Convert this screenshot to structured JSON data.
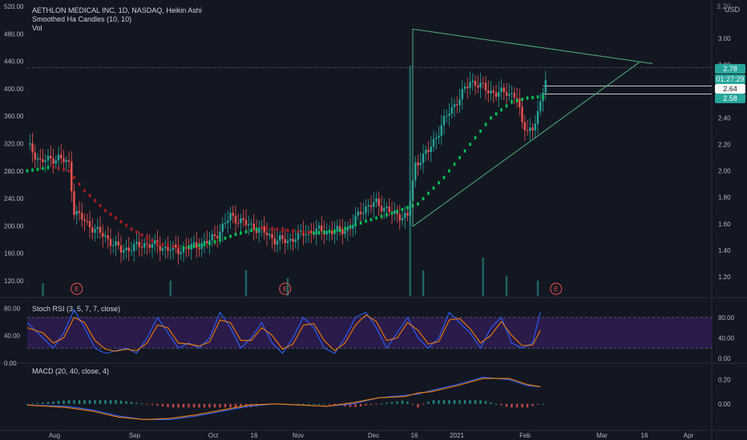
{
  "header": {
    "title": "AETHLON MEDICAL INC, 1D, NASDAQ, Heikin Ashi",
    "indicator1": "Smoothed Ha Candles (10, 10)",
    "indicator2": "Vol",
    "currency": "USD"
  },
  "price_tags": {
    "last": "2.78",
    "countdown": "01:27:29",
    "mark1": "2.64",
    "mark2": "2.58",
    "top_tick": "3.20"
  },
  "colors": {
    "background": "#131722",
    "up": "#26a69a",
    "down": "#ef5350",
    "ha_up": "#00c853",
    "ha_down": "#b71c1c",
    "trendline": "#4caf7d",
    "stoch_k": "#2962ff",
    "stoch_d": "#f57c00",
    "macd": "#2962ff",
    "signal": "#f57c00",
    "band": "#2a1b4a"
  },
  "chart_data": [
    {
      "type": "candlestick",
      "title": "AETHLON MEDICAL INC, 1D, NASDAQ, Heikin Ashi",
      "x_ticks": [
        "Aug",
        "Sep",
        "Oct",
        "16",
        "Nov",
        "Dec",
        "16",
        "2021",
        "Feb",
        "Mar",
        "16",
        "Apr"
      ],
      "y_ticks_left": [
        "520.00",
        "480.00",
        "440.00",
        "400.00",
        "360.00",
        "320.00",
        "280.00",
        "240.00",
        "200.00",
        "160.00",
        "120.00",
        "80.00",
        "40.00",
        "0.00"
      ],
      "y_ticks_right": [
        "3.00",
        "2.80",
        "2.60",
        "2.40",
        "2.20",
        "2.00",
        "1.80",
        "1.60",
        "1.40",
        "1.20"
      ],
      "ylim": [
        1.07,
        3.2
      ],
      "earnings_markers": [
        "E",
        "E",
        "E"
      ],
      "price_path": [
        [
          0,
          2.2
        ],
        [
          5,
          2.07
        ],
        [
          12,
          2.1
        ],
        [
          16,
          2.05
        ],
        [
          18,
          1.7
        ],
        [
          23,
          1.6
        ],
        [
          30,
          1.5
        ],
        [
          36,
          1.4
        ],
        [
          40,
          1.42
        ],
        [
          46,
          1.45
        ],
        [
          52,
          1.42
        ],
        [
          58,
          1.4
        ],
        [
          64,
          1.43
        ],
        [
          70,
          1.47
        ],
        [
          74,
          1.55
        ],
        [
          78,
          1.66
        ],
        [
          84,
          1.6
        ],
        [
          90,
          1.55
        ],
        [
          95,
          1.48
        ],
        [
          100,
          1.47
        ],
        [
          106,
          1.53
        ],
        [
          112,
          1.55
        ],
        [
          118,
          1.54
        ],
        [
          124,
          1.57
        ],
        [
          128,
          1.7
        ],
        [
          134,
          1.76
        ],
        [
          140,
          1.68
        ],
        [
          146,
          1.65
        ],
        [
          149,
          2.05
        ],
        [
          154,
          2.15
        ],
        [
          158,
          2.3
        ],
        [
          162,
          2.45
        ],
        [
          166,
          2.55
        ],
        [
          170,
          2.68
        ],
        [
          176,
          2.62
        ],
        [
          180,
          2.58
        ],
        [
          184,
          2.6
        ],
        [
          188,
          2.55
        ],
        [
          190,
          2.35
        ],
        [
          194,
          2.3
        ],
        [
          197,
          2.5
        ],
        [
          199,
          2.72
        ]
      ],
      "ha_smoothed": [
        [
          0,
          2.0
        ],
        [
          10,
          2.03
        ],
        [
          16,
          2.0
        ],
        [
          22,
          1.85
        ],
        [
          30,
          1.7
        ],
        [
          40,
          1.56
        ],
        [
          50,
          1.45
        ],
        [
          60,
          1.42
        ],
        [
          70,
          1.45
        ],
        [
          80,
          1.52
        ],
        [
          90,
          1.57
        ],
        [
          100,
          1.55
        ],
        [
          110,
          1.53
        ],
        [
          120,
          1.55
        ],
        [
          130,
          1.62
        ],
        [
          140,
          1.68
        ],
        [
          150,
          1.75
        ],
        [
          160,
          1.95
        ],
        [
          170,
          2.2
        ],
        [
          178,
          2.4
        ],
        [
          186,
          2.52
        ],
        [
          192,
          2.55
        ],
        [
          197,
          2.56
        ]
      ],
      "volume": [
        [
          6,
          0.05
        ],
        [
          55,
          0.06
        ],
        [
          84,
          0.1
        ],
        [
          100,
          0.07
        ],
        [
          147,
          0.9
        ],
        [
          152,
          0.1
        ],
        [
          175,
          0.15
        ],
        [
          184,
          0.08
        ],
        [
          196,
          0.06
        ]
      ],
      "trendline_upper": [
        [
          148,
          3.07
        ],
        [
          240,
          2.81
        ]
      ],
      "trendline_lower": [
        [
          148,
          1.58
        ],
        [
          235,
          2.82
        ]
      ],
      "channel_lines": [
        2.64,
        2.58
      ],
      "dotted_level": 2.78
    },
    {
      "type": "line",
      "title": "Stoch RSI (3, 5, 7, 7, close)",
      "y_ticks": [
        "80.00",
        "40.00",
        "0.00"
      ],
      "ylim": [
        0,
        100
      ],
      "band": [
        20,
        80
      ],
      "series": [
        {
          "name": "K",
          "values": [
            [
              0,
              70
            ],
            [
              6,
              40
            ],
            [
              10,
              20
            ],
            [
              14,
              50
            ],
            [
              18,
              95
            ],
            [
              22,
              60
            ],
            [
              26,
              20
            ],
            [
              30,
              10
            ],
            [
              34,
              15
            ],
            [
              38,
              20
            ],
            [
              42,
              10
            ],
            [
              46,
              40
            ],
            [
              50,
              80
            ],
            [
              54,
              50
            ],
            [
              58,
              20
            ],
            [
              62,
              30
            ],
            [
              66,
              20
            ],
            [
              70,
              40
            ],
            [
              74,
              90
            ],
            [
              78,
              60
            ],
            [
              82,
              20
            ],
            [
              86,
              40
            ],
            [
              90,
              70
            ],
            [
              94,
              30
            ],
            [
              98,
              10
            ],
            [
              102,
              40
            ],
            [
              106,
              80
            ],
            [
              110,
              60
            ],
            [
              114,
              20
            ],
            [
              118,
              10
            ],
            [
              122,
              40
            ],
            [
              126,
              80
            ],
            [
              130,
              90
            ],
            [
              134,
              60
            ],
            [
              138,
              20
            ],
            [
              142,
              50
            ],
            [
              146,
              80
            ],
            [
              150,
              40
            ],
            [
              154,
              20
            ],
            [
              158,
              40
            ],
            [
              162,
              90
            ],
            [
              166,
              70
            ],
            [
              170,
              50
            ],
            [
              174,
              20
            ],
            [
              178,
              60
            ],
            [
              182,
              80
            ],
            [
              186,
              30
            ],
            [
              190,
              20
            ],
            [
              194,
              30
            ],
            [
              197,
              90
            ]
          ]
        },
        {
          "name": "D",
          "values": [
            [
              0,
              60
            ],
            [
              6,
              50
            ],
            [
              10,
              30
            ],
            [
              14,
              40
            ],
            [
              18,
              80
            ],
            [
              22,
              70
            ],
            [
              26,
              35
            ],
            [
              30,
              18
            ],
            [
              34,
              14
            ],
            [
              38,
              18
            ],
            [
              42,
              15
            ],
            [
              46,
              30
            ],
            [
              50,
              65
            ],
            [
              54,
              60
            ],
            [
              58,
              30
            ],
            [
              62,
              28
            ],
            [
              66,
              24
            ],
            [
              70,
              32
            ],
            [
              74,
              75
            ],
            [
              78,
              70
            ],
            [
              82,
              35
            ],
            [
              86,
              35
            ],
            [
              90,
              60
            ],
            [
              94,
              45
            ],
            [
              98,
              18
            ],
            [
              102,
              28
            ],
            [
              106,
              65
            ],
            [
              110,
              68
            ],
            [
              114,
              35
            ],
            [
              118,
              15
            ],
            [
              122,
              30
            ],
            [
              126,
              65
            ],
            [
              130,
              85
            ],
            [
              134,
              72
            ],
            [
              138,
              35
            ],
            [
              142,
              40
            ],
            [
              146,
              70
            ],
            [
              150,
              55
            ],
            [
              154,
              28
            ],
            [
              158,
              33
            ],
            [
              162,
              75
            ],
            [
              166,
              78
            ],
            [
              170,
              58
            ],
            [
              174,
              30
            ],
            [
              178,
              45
            ],
            [
              182,
              72
            ],
            [
              186,
              45
            ],
            [
              190,
              25
            ],
            [
              194,
              26
            ],
            [
              197,
              55
            ]
          ]
        }
      ]
    },
    {
      "type": "line",
      "title": "MACD (20, 40, close, 4)",
      "y_ticks": [
        "0.20",
        "0.00"
      ],
      "ylim": [
        -0.18,
        0.27
      ],
      "series": [
        {
          "name": "MACD",
          "values": [
            [
              0,
              -0.01
            ],
            [
              15,
              -0.02
            ],
            [
              25,
              -0.05
            ],
            [
              35,
              -0.1
            ],
            [
              45,
              -0.13
            ],
            [
              55,
              -0.13
            ],
            [
              65,
              -0.1
            ],
            [
              75,
              -0.06
            ],
            [
              85,
              -0.02
            ],
            [
              95,
              0.0
            ],
            [
              105,
              -0.01
            ],
            [
              115,
              -0.02
            ],
            [
              125,
              0.0
            ],
            [
              135,
              0.05
            ],
            [
              145,
              0.07
            ],
            [
              150,
              0.08
            ],
            [
              155,
              0.11
            ],
            [
              165,
              0.16
            ],
            [
              175,
              0.22
            ],
            [
              185,
              0.2
            ],
            [
              192,
              0.15
            ],
            [
              197,
              0.14
            ]
          ]
        },
        {
          "name": "Signal",
          "values": [
            [
              0,
              -0.01
            ],
            [
              15,
              -0.03
            ],
            [
              25,
              -0.06
            ],
            [
              35,
              -0.11
            ],
            [
              45,
              -0.13
            ],
            [
              55,
              -0.12
            ],
            [
              65,
              -0.09
            ],
            [
              75,
              -0.05
            ],
            [
              85,
              -0.01
            ],
            [
              95,
              0.0
            ],
            [
              105,
              -0.01
            ],
            [
              115,
              -0.02
            ],
            [
              125,
              0.01
            ],
            [
              135,
              0.05
            ],
            [
              145,
              0.06
            ],
            [
              150,
              0.09
            ],
            [
              155,
              0.1
            ],
            [
              165,
              0.15
            ],
            [
              175,
              0.21
            ],
            [
              185,
              0.21
            ],
            [
              192,
              0.16
            ],
            [
              197,
              0.14
            ]
          ]
        }
      ]
    }
  ]
}
